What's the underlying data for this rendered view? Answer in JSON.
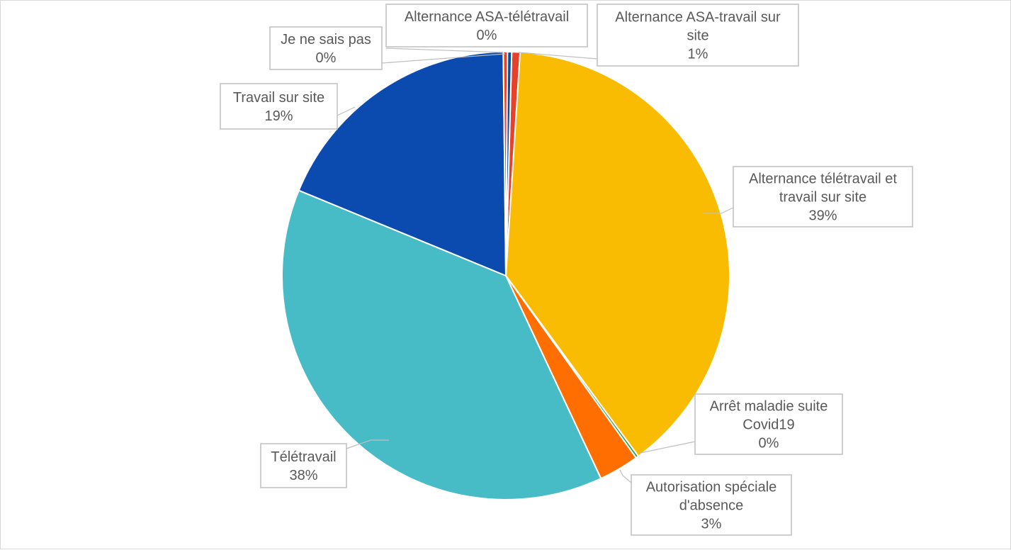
{
  "chart_data": {
    "type": "pie",
    "slices": [
      {
        "label_lines": [
          "Alternance ASA-travail sur",
          "site"
        ],
        "value_label": "1%",
        "value": 0.6,
        "color": "#e8412b"
      },
      {
        "label_lines": [
          "Alternance télétravail et",
          "travail sur site"
        ],
        "value_label": "39%",
        "value": 38.9,
        "color": "#f9bc02"
      },
      {
        "label_lines": [
          "Arrêt maladie suite",
          "Covid19"
        ],
        "value_label": "0%",
        "value": 0.2,
        "color": "#3a9b48"
      },
      {
        "label_lines": [
          "Autorisation spéciale",
          "d'absence"
        ],
        "value_label": "3%",
        "value": 2.9,
        "color": "#ff6e00"
      },
      {
        "label_lines": [
          "Télétravail"
        ],
        "value_label": "38%",
        "value": 38.2,
        "color": "#47bbc6"
      },
      {
        "label_lines": [
          "Travail sur site"
        ],
        "value_label": "19%",
        "value": 18.6,
        "color": "#0b4bb0"
      },
      {
        "label_lines": [
          "Je ne sais pas"
        ],
        "value_label": "0%",
        "value": 0.3,
        "color": "#e8412b"
      },
      {
        "label_lines": [
          "Alternance ASA-télétravail"
        ],
        "value_label": "0%",
        "value": 0.3,
        "color": "#0b4bb0"
      }
    ]
  }
}
